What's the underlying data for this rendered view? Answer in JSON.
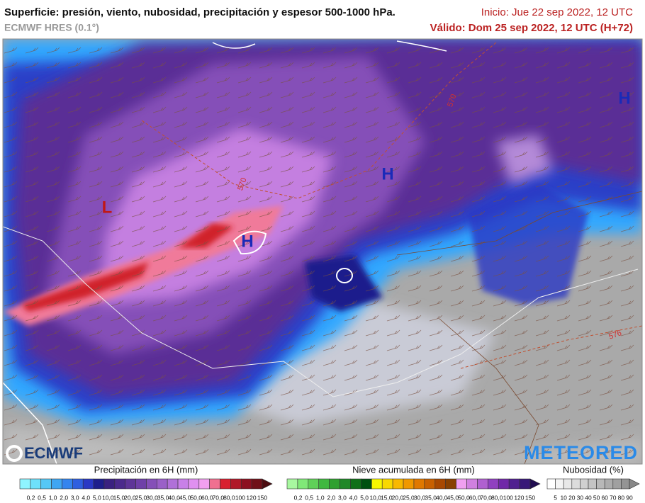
{
  "header": {
    "title": "Superficie: presión, viento, nubosidad, precipitación y espesor 500-1000 hPa.",
    "model": "ECMWF HRES (0.1°)",
    "init": "Inicio: Jue 22 sep 2022, 12 UTC",
    "valid": "Válido: Dom 25 sep 2022, 12 UTC (H+72)"
  },
  "map": {
    "pressure_centers": [
      "L",
      "H",
      "H",
      "H"
    ],
    "contour_labels": [
      "570",
      "570",
      "576"
    ]
  },
  "logos": {
    "left": "ECMWF",
    "right": "METEORED"
  },
  "legend": {
    "precipitation": {
      "title": "Precipitación en 6H (mm)",
      "ticks": [
        "0,2",
        "0,5",
        "1,0",
        "2,0",
        "3,0",
        "4,0",
        "5,0",
        "10,0",
        "15,0",
        "20,0",
        "25,0",
        "30,0",
        "35,0",
        "40,0",
        "45,0",
        "50,0",
        "60,0",
        "70,0",
        "80,0",
        "100",
        "120",
        "150"
      ],
      "colors": [
        "#8ff5ff",
        "#6ee0fb",
        "#55c8f6",
        "#3fa6f2",
        "#3484ee",
        "#2f5fe0",
        "#2a38c4",
        "#1e1e8c",
        "#3a2180",
        "#4b2a8c",
        "#5e3598",
        "#6f40a8",
        "#8550b8",
        "#9a60c8",
        "#b070d8",
        "#c880e8",
        "#e090f0",
        "#f2a0f0",
        "#f07090",
        "#d82030",
        "#b01828",
        "#8c1020",
        "#701018",
        "#4c0c10"
      ]
    },
    "snow": {
      "title": "Nieve acumulada en 6H (mm)",
      "ticks": [
        "0,2",
        "0,5",
        "1,0",
        "2,0",
        "3,0",
        "4,0",
        "5,0",
        "10,0",
        "15,0",
        "20,0",
        "25,0",
        "30,0",
        "35,0",
        "40,0",
        "45,0",
        "50,0",
        "60,0",
        "70,0",
        "80,0",
        "100",
        "120",
        "150"
      ],
      "colors": [
        "#a8f8a0",
        "#80e878",
        "#60d058",
        "#40b840",
        "#30a030",
        "#208828",
        "#107018",
        "#005010",
        "#f8f800",
        "#f8d800",
        "#f8b800",
        "#f09800",
        "#e07800",
        "#c86000",
        "#a84800",
        "#884000",
        "#f0a0f0",
        "#d080e0",
        "#b060d0",
        "#9040c0",
        "#7028a8",
        "#502090",
        "#381878",
        "#200c50"
      ]
    },
    "clouds": {
      "title": "Nubosidad (%)",
      "ticks": [
        "5",
        "10",
        "20",
        "30",
        "40",
        "50",
        "60",
        "70",
        "80",
        "90"
      ],
      "colors": [
        "#ffffff",
        "#f4f4f4",
        "#e8e8e8",
        "#dcdcdc",
        "#d0d0d0",
        "#c4c4c4",
        "#b8b8b8",
        "#acacac",
        "#a0a0a0",
        "#949494",
        "#888888"
      ]
    }
  }
}
